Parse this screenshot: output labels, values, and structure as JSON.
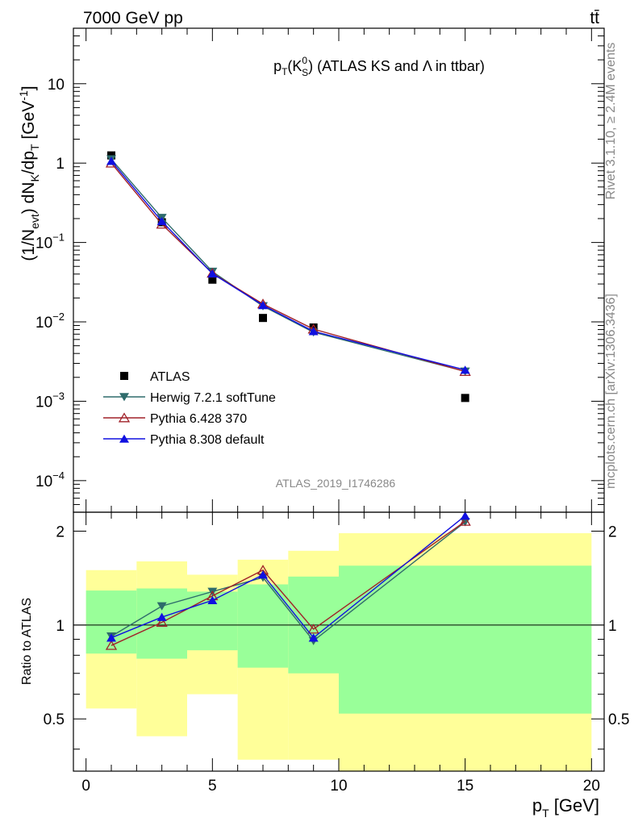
{
  "header": {
    "left_label": "7000 GeV pp",
    "right_label": "tt̄"
  },
  "side_labels": {
    "rivet": "Rivet 3.1.10, ≥ 2.4M events",
    "mcplots": "mcplots.cern.ch [arXiv:1306.3436]"
  },
  "chart_data": [
    {
      "type": "scatter",
      "title": "p_T(K_S^0) (ATLAS KS and Λ in ttbar)",
      "ylabel": "(1/N_evt) dN_K/dp_T [GeV^-1]",
      "xlim": [
        -0.5,
        20.5
      ],
      "ylim": [
        4e-05,
        50
      ],
      "yscale": "log",
      "watermark": "ATLAS_2019_I1746286",
      "y_ticks": [
        {
          "v": 0.0001,
          "base": "10",
          "exp": "−4"
        },
        {
          "v": 0.001,
          "base": "10",
          "exp": "−3"
        },
        {
          "v": 0.01,
          "base": "10",
          "exp": "−2"
        },
        {
          "v": 0.1,
          "base": "10",
          "exp": "−1"
        },
        {
          "v": 1,
          "base": "1",
          "exp": ""
        },
        {
          "v": 10,
          "base": "10",
          "exp": ""
        }
      ],
      "legend_position": "bottom-left",
      "series": [
        {
          "name": "ATLAS",
          "color": "#000000",
          "marker": "square",
          "x": [
            1,
            3,
            5,
            7,
            9,
            15
          ],
          "y": [
            1.25,
            0.18,
            0.034,
            0.0112,
            0.0085,
            0.0011
          ]
        },
        {
          "name": "Herwig 7.2.1 softTune",
          "color": "#2e6b6b",
          "marker": "triangle-down",
          "x": [
            1,
            3,
            5,
            7,
            9,
            15
          ],
          "y": [
            1.12,
            0.205,
            0.043,
            0.0158,
            0.0074,
            0.00238
          ]
        },
        {
          "name": "Pythia 6.428 370",
          "color": "#a02028",
          "marker": "triangle-up-open",
          "x": [
            1,
            3,
            5,
            7,
            9,
            15
          ],
          "y": [
            1.0,
            0.17,
            0.041,
            0.0168,
            0.0081,
            0.00237
          ]
        },
        {
          "name": "Pythia 8.308 default",
          "color": "#1010e0",
          "marker": "triangle-up",
          "x": [
            1,
            3,
            5,
            7,
            9,
            15
          ],
          "y": [
            1.06,
            0.185,
            0.0405,
            0.0162,
            0.0076,
            0.00248
          ]
        }
      ]
    },
    {
      "type": "line",
      "ylabel": "Ratio to ATLAS",
      "xlabel": "p_T [GeV]",
      "xlim": [
        -0.5,
        20.5
      ],
      "ylim": [
        0.34,
        2.3
      ],
      "yscale": "log",
      "x_ticks": [
        0,
        5,
        10,
        15,
        20
      ],
      "y_ticks": [
        0.5,
        1,
        2
      ],
      "bands": {
        "bins": [
          [
            0,
            2
          ],
          [
            2,
            4
          ],
          [
            4,
            6
          ],
          [
            6,
            8
          ],
          [
            8,
            10
          ],
          [
            10,
            20
          ]
        ],
        "yellow_lo": [
          0.54,
          0.44,
          0.6,
          0.37,
          0.37,
          0.34
        ],
        "yellow_hi": [
          1.5,
          1.6,
          1.45,
          1.62,
          1.73,
          1.97
        ],
        "green_lo": [
          0.81,
          0.78,
          0.83,
          0.73,
          0.7,
          0.52
        ],
        "green_hi": [
          1.29,
          1.31,
          1.28,
          1.35,
          1.43,
          1.55
        ],
        "yellow_color": "#ffff99",
        "green_color": "#99ff99"
      },
      "series": [
        {
          "name": "Herwig 7.2.1 softTune",
          "color": "#2e6b6b",
          "marker": "triangle-down",
          "x": [
            1,
            3,
            5,
            7,
            9,
            15
          ],
          "y": [
            0.92,
            1.15,
            1.28,
            1.42,
            0.89,
            2.14
          ]
        },
        {
          "name": "Pythia 6.428 370",
          "color": "#a02028",
          "marker": "triangle-up-open",
          "x": [
            1,
            3,
            5,
            7,
            9,
            15
          ],
          "y": [
            0.86,
            1.02,
            1.24,
            1.5,
            0.97,
            2.15
          ]
        },
        {
          "name": "Pythia 8.308 default",
          "color": "#1010e0",
          "marker": "triangle-up",
          "x": [
            1,
            3,
            5,
            7,
            9,
            15
          ],
          "y": [
            0.91,
            1.06,
            1.2,
            1.45,
            0.91,
            2.24
          ]
        }
      ]
    }
  ]
}
